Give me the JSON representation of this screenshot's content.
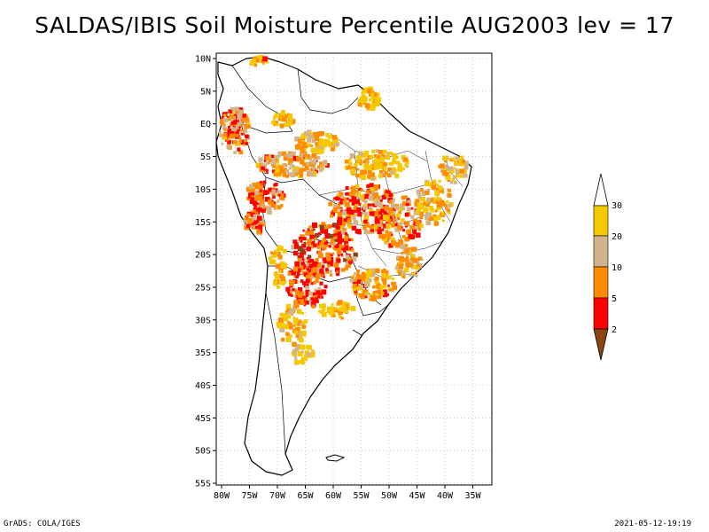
{
  "title": "SALDAS/IBIS Soil Moisture Percentile AUG2003 lev = 17",
  "footer": {
    "left": "GrADS: COLA/IGES",
    "right": "2021-05-12-19:19"
  },
  "map": {
    "lon_labels": [
      "80W",
      "75W",
      "70W",
      "65W",
      "60W",
      "55W",
      "50W",
      "45W",
      "40W",
      "35W"
    ],
    "lat_labels": [
      "10N",
      "5N",
      "EQ",
      "5S",
      "10S",
      "15S",
      "20S",
      "25S",
      "30S",
      "35S",
      "40S",
      "45S",
      "50S",
      "55S"
    ]
  },
  "legend": {
    "labels": [
      "30",
      "20",
      "10",
      "5",
      "2"
    ],
    "colors": {
      "above_30": "#ffffff",
      "20_30": "#f5c800",
      "10_20": "#d2b48c",
      "5_10": "#ff8c00",
      "2_5": "#ff0000",
      "below_2": "#8b4513"
    }
  }
}
